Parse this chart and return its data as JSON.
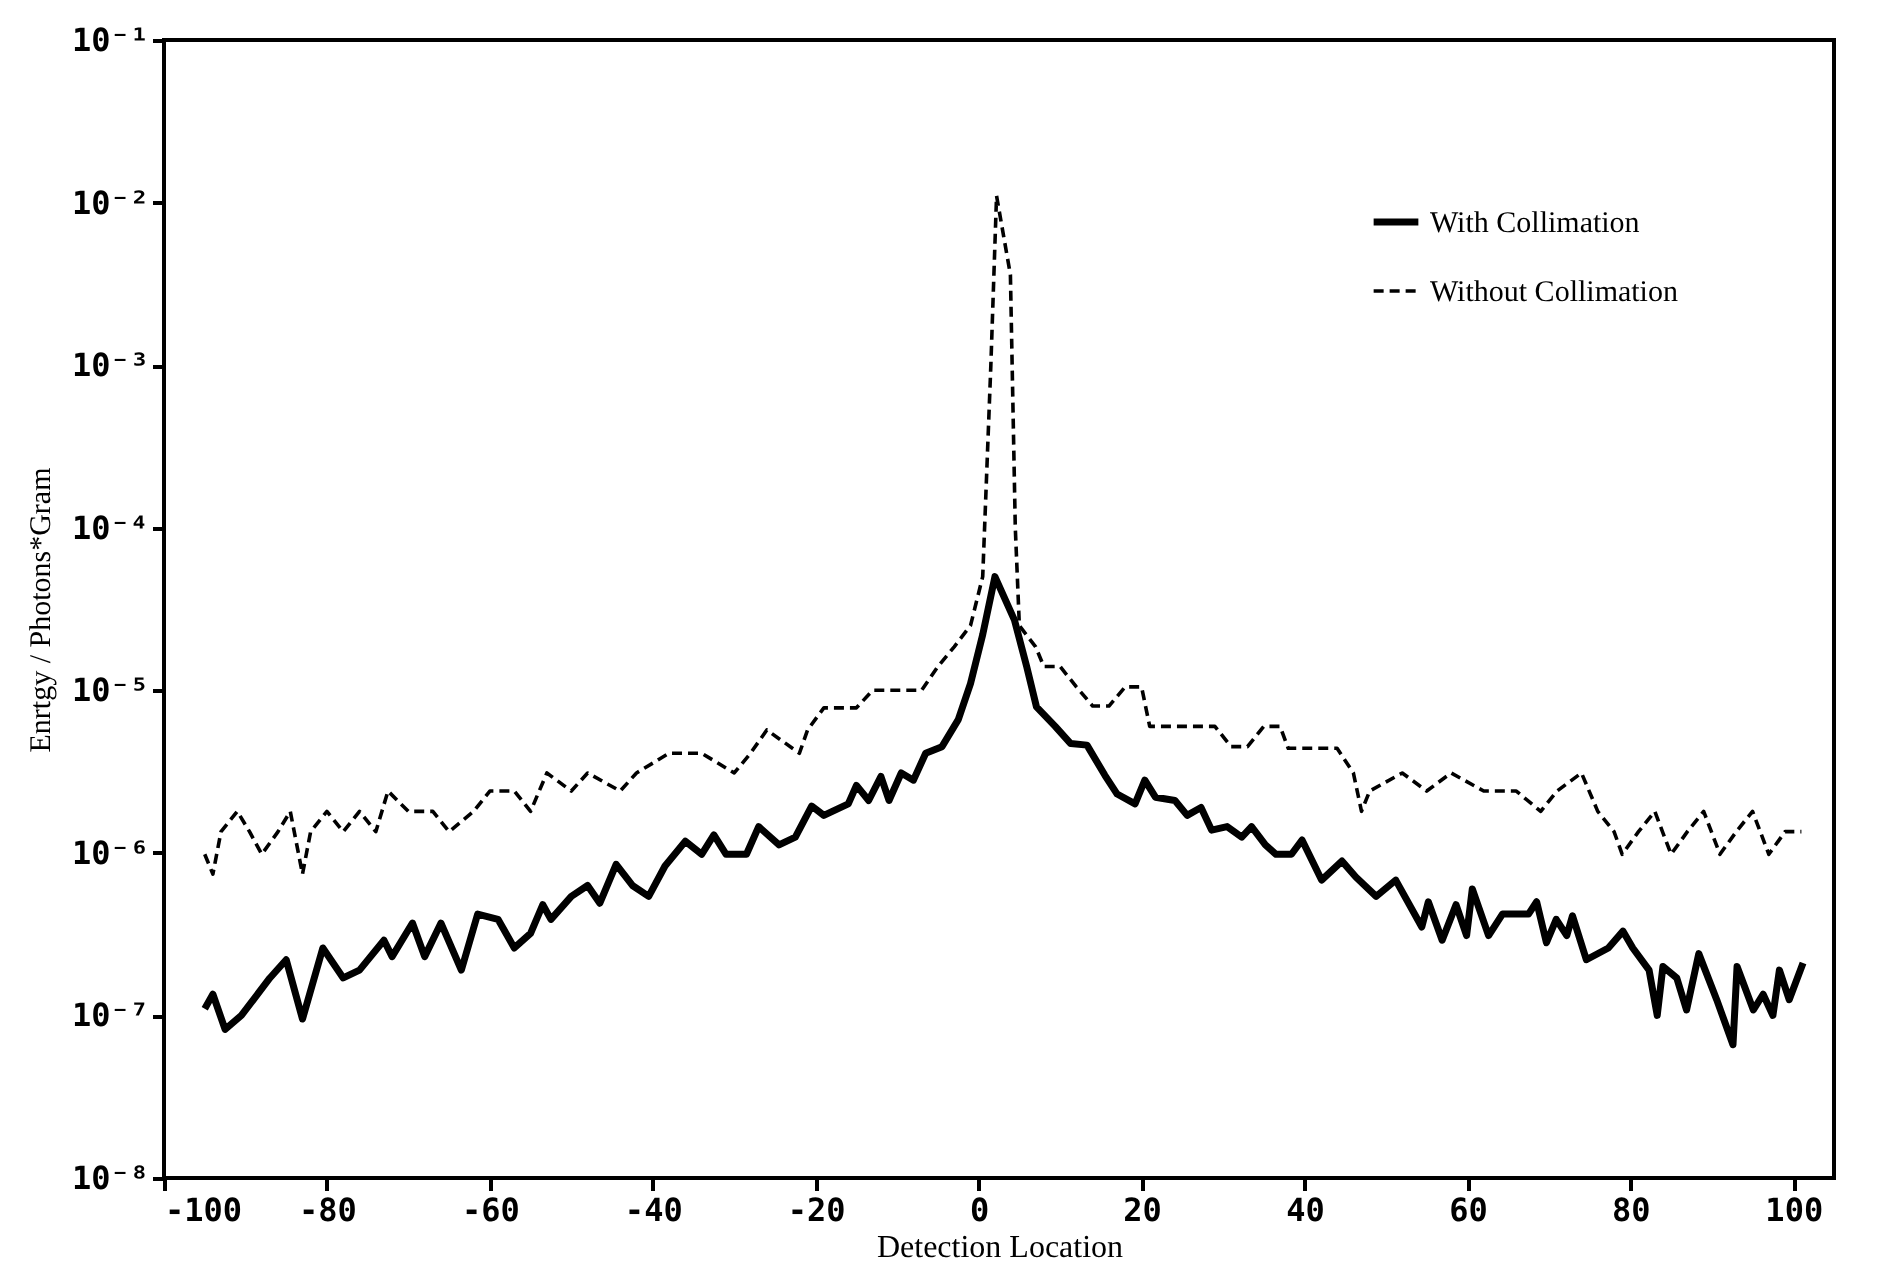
{
  "chart_data": {
    "type": "line",
    "xlabel": "Detection Location",
    "ylabel": "Enrtgy / Photons*Gram",
    "log": "y",
    "grid": false,
    "legend": "top right",
    "marker": "none",
    "xlim": [
      -100,
      105
    ],
    "xticks": [
      -100,
      -80,
      -60,
      -40,
      -20,
      0,
      20,
      40,
      60,
      80,
      100
    ],
    "ylim": [
      1e-08,
      0.1
    ],
    "yticks": [
      {
        "value": 0.1,
        "label": "10⁻¹"
      },
      {
        "value": 0.01,
        "label": "10⁻²"
      },
      {
        "value": 0.001,
        "label": "10⁻³"
      },
      {
        "value": 0.0001,
        "label": "10⁻⁴"
      },
      {
        "value": 1e-05,
        "label": "10⁻⁵"
      },
      {
        "value": 1e-06,
        "label": "10⁻⁶"
      },
      {
        "value": 1e-07,
        "label": "10⁻⁷"
      },
      {
        "value": 1e-08,
        "label": "10⁻⁸"
      }
    ],
    "series": [
      {
        "name": "With Collimation",
        "color": "#000000",
        "line_style": "solid",
        "x": [
          -95,
          -94,
          -92.5,
          -90.5,
          -87,
          -85,
          -83,
          -80.5,
          -78,
          -76,
          -73,
          -72,
          -69.5,
          -68,
          -66,
          -63.5,
          -61.5,
          -59,
          -57,
          -55,
          -53.5,
          -52.5,
          -50,
          -48,
          -46.5,
          -44.5,
          -42.5,
          -40.5,
          -38.5,
          -36,
          -34,
          -32.5,
          -31,
          -28.5,
          -27,
          -24.5,
          -22.5,
          -20.5,
          -19,
          -16,
          -15,
          -13.5,
          -12,
          -11,
          -9.5,
          -8,
          -6.5,
          -4.5,
          -2.5,
          -1,
          0.5,
          2,
          4.4,
          5.9,
          7.1,
          9.4,
          11.3,
          13.3,
          15.5,
          17,
          19.2,
          20.4,
          21.7,
          24.1,
          25.6,
          27.3,
          28.6,
          30.5,
          32.3,
          33.5,
          35.2,
          36.5,
          38.4,
          39.7,
          42.1,
          44.6,
          46.3,
          48.8,
          51.2,
          54.4,
          55.2,
          56.9,
          58.6,
          59.9,
          60.6,
          62.6,
          64.3,
          67.5,
          68.5,
          69.7,
          70.9,
          72.2,
          72.9,
          74.6,
          77.3,
          79.1,
          80.3,
          82.3,
          83.3,
          84,
          85.7,
          86.9,
          88.4,
          90.6,
          92.6,
          93.1,
          95.1,
          96.3,
          97.5,
          98.3,
          99.5,
          101.2
        ],
        "values": [
          1.1e-07,
          1.35e-07,
          8.2e-08,
          1e-07,
          1.7e-07,
          2.2e-07,
          9.5e-08,
          2.6e-07,
          1.7e-07,
          1.9e-07,
          2.9e-07,
          2.3e-07,
          3.7e-07,
          2.3e-07,
          3.7e-07,
          1.9e-07,
          4.2e-07,
          3.9e-07,
          2.6e-07,
          3.2e-07,
          4.8e-07,
          3.9e-07,
          5.4e-07,
          6.3e-07,
          4.9e-07,
          8.5e-07,
          6.3e-07,
          5.4e-07,
          8.3e-07,
          1.18e-06,
          9.8e-07,
          1.29e-06,
          9.8e-07,
          9.8e-07,
          1.45e-06,
          1.12e-06,
          1.25e-06,
          1.94e-06,
          1.7e-06,
          2e-06,
          2.6e-06,
          2.1e-06,
          2.95e-06,
          2.1e-06,
          3.1e-06,
          2.8e-06,
          4.1e-06,
          4.5e-06,
          6.6e-06,
          1.1e-05,
          2.2e-05,
          5e-05,
          2.7e-05,
          1.4e-05,
          7.9e-06,
          6e-06,
          4.7e-06,
          4.6e-06,
          3e-06,
          2.3e-06,
          2e-06,
          2.8e-06,
          2.2e-06,
          2.1e-06,
          1.7e-06,
          1.9e-06,
          1.38e-06,
          1.45e-06,
          1.25e-06,
          1.45e-06,
          1.12e-06,
          9.8e-07,
          9.8e-07,
          1.2e-06,
          6.8e-07,
          8.9e-07,
          7.1e-07,
          5.4e-07,
          6.8e-07,
          3.5e-07,
          5e-07,
          2.9e-07,
          4.8e-07,
          3.1e-07,
          6e-07,
          3.1e-07,
          4.2e-07,
          4.2e-07,
          5e-07,
          2.8e-07,
          3.9e-07,
          3.1e-07,
          4.1e-07,
          2.2e-07,
          2.6e-07,
          3.3e-07,
          2.6e-07,
          1.9e-07,
          1e-07,
          2e-07,
          1.7e-07,
          1.08e-07,
          2.4e-07,
          1.25e-07,
          6.6e-08,
          2e-07,
          1.08e-07,
          1.35e-07,
          1e-07,
          1.9e-07,
          1.25e-07,
          2.1e-07
        ]
      },
      {
        "name": "Without Collimation",
        "color": "#000000",
        "line_style": "dashed",
        "x": [
          -95,
          -94,
          -93,
          -91,
          -89.5,
          -88,
          -86,
          -84.5,
          -83,
          -82,
          -80,
          -78,
          -76,
          -74,
          -72.5,
          -70,
          -67,
          -65,
          -62,
          -60,
          -57,
          -55,
          -53,
          -50,
          -48,
          -44,
          -42,
          -38,
          -34,
          -30,
          -28,
          -26,
          -22,
          -21,
          -19,
          -15,
          -13,
          -7,
          -5,
          -3,
          -1,
          0.5,
          1.5,
          2.2,
          3.9,
          4.5,
          5,
          7,
          8,
          10,
          12,
          14,
          16,
          18,
          20,
          21,
          25,
          29,
          31,
          33,
          35,
          37,
          38,
          44,
          46,
          47,
          48,
          52,
          55,
          58,
          62,
          66,
          69,
          71,
          74,
          76,
          78,
          79,
          81,
          83,
          85,
          87,
          89,
          91,
          93,
          95,
          97,
          99,
          101
        ],
        "values": [
          9.8e-07,
          7.4e-07,
          1.35e-06,
          1.8e-06,
          1.35e-06,
          9.8e-07,
          1.35e-06,
          1.8e-06,
          7.4e-07,
          1.35e-06,
          1.8e-06,
          1.35e-06,
          1.8e-06,
          1.35e-06,
          2.4e-06,
          1.8e-06,
          1.8e-06,
          1.35e-06,
          1.8e-06,
          2.4e-06,
          2.4e-06,
          1.8e-06,
          3.1e-06,
          2.4e-06,
          3.1e-06,
          2.4e-06,
          3.1e-06,
          4.1e-06,
          4.1e-06,
          3.1e-06,
          4.1e-06,
          5.7e-06,
          4.1e-06,
          5.7e-06,
          7.8e-06,
          7.8e-06,
          1e-05,
          1e-05,
          1.4e-05,
          1.85e-05,
          2.5e-05,
          5e-05,
          0.001,
          0.011,
          0.0036,
          0.0001,
          2.5e-05,
          1.85e-05,
          1.4e-05,
          1.4e-05,
          1.05e-05,
          8e-06,
          8e-06,
          1.05e-05,
          1.05e-05,
          6e-06,
          6e-06,
          6e-06,
          4.5e-06,
          4.5e-06,
          6e-06,
          6e-06,
          4.4e-06,
          4.4e-06,
          3.1e-06,
          1.8e-06,
          2.4e-06,
          3.1e-06,
          2.4e-06,
          3.1e-06,
          2.4e-06,
          2.4e-06,
          1.8e-06,
          2.4e-06,
          3.1e-06,
          1.8e-06,
          1.35e-06,
          9.8e-07,
          1.35e-06,
          1.8e-06,
          9.8e-07,
          1.35e-06,
          1.8e-06,
          9.8e-07,
          1.35e-06,
          1.8e-06,
          9.8e-07,
          1.35e-06,
          1.35e-06
        ]
      }
    ]
  }
}
